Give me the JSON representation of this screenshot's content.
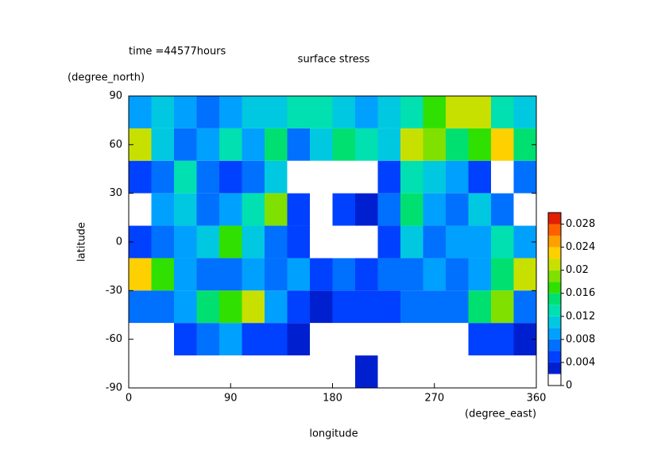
{
  "chart_data": {
    "type": "heatmap",
    "title": "surface stress",
    "annotation": "time =44577hours",
    "x_label": "longitude",
    "x_units": "(degree_east)",
    "y_label": "latitude",
    "y_units": "(degree_north)",
    "x": [
      10,
      30,
      50,
      70,
      90,
      110,
      130,
      150,
      170,
      190,
      210,
      230,
      250,
      270,
      290,
      310,
      330,
      350
    ],
    "y": [
      80,
      60,
      40,
      20,
      0,
      -20,
      -40,
      -60,
      -80
    ],
    "z": [
      [
        0.008,
        0.01,
        0.008,
        0.006,
        0.008,
        0.01,
        0.01,
        0.012,
        0.012,
        0.01,
        0.008,
        0.01,
        0.012,
        0.016,
        0.02,
        0.02,
        0.012,
        0.01
      ],
      [
        0.02,
        0.01,
        0.006,
        0.008,
        0.012,
        0.008,
        0.014,
        0.006,
        0.01,
        0.014,
        0.012,
        0.01,
        0.02,
        0.018,
        0.014,
        0.016,
        0.022,
        0.014
      ],
      [
        0.004,
        0.006,
        0.012,
        0.006,
        0.004,
        0.006,
        0.01,
        0,
        0,
        0,
        0,
        0.004,
        0.012,
        0.01,
        0.008,
        0.004,
        0,
        0.006
      ],
      [
        0,
        0.008,
        0.01,
        0.006,
        0.008,
        0.012,
        0.018,
        0.004,
        0,
        0.004,
        0.002,
        0.006,
        0.014,
        0.008,
        0.006,
        0.01,
        0.006,
        0
      ],
      [
        0.004,
        0.006,
        0.008,
        0.01,
        0.016,
        0.01,
        0.006,
        0.004,
        0,
        0,
        0,
        0.004,
        0.01,
        0.006,
        0.008,
        0.008,
        0.012,
        0.008
      ],
      [
        0.022,
        0.016,
        0.008,
        0.006,
        0.006,
        0.008,
        0.006,
        0.008,
        0.004,
        0.006,
        0.004,
        0.006,
        0.006,
        0.008,
        0.006,
        0.008,
        0.014,
        0.02
      ],
      [
        0.006,
        0.006,
        0.008,
        0.014,
        0.016,
        0.02,
        0.008,
        0.004,
        0.002,
        0.004,
        0.004,
        0.004,
        0.006,
        0.006,
        0.006,
        0.014,
        0.018,
        0.006
      ],
      [
        0,
        0,
        0.004,
        0.006,
        0.008,
        0.004,
        0.004,
        0.002,
        0,
        0,
        0,
        0,
        0,
        0,
        0,
        0.004,
        0.004,
        0.002
      ],
      [
        0,
        0,
        0,
        0,
        0,
        0,
        0,
        0,
        0,
        0,
        0.002,
        0,
        0,
        0,
        0,
        0,
        0,
        0
      ]
    ],
    "xlim": [
      0,
      360
    ],
    "xticks": [
      0,
      90,
      180,
      270,
      360
    ],
    "ylim": [
      -90,
      90
    ],
    "yticks": [
      -90,
      -60,
      -30,
      0,
      30,
      60,
      90
    ],
    "zlim": [
      0,
      0.03
    ],
    "zticks": [
      0,
      0.004,
      0.008,
      0.012,
      0.016,
      0.02,
      0.024,
      0.028
    ],
    "colors": [
      "#ffffff",
      "#0020d0",
      "#0040ff",
      "#0070ff",
      "#00a0ff",
      "#00c8e0",
      "#00e0b0",
      "#00e070",
      "#30e000",
      "#80e000",
      "#c8e000",
      "#ffd000",
      "#ffa000",
      "#ff6000",
      "#e02000"
    ]
  }
}
